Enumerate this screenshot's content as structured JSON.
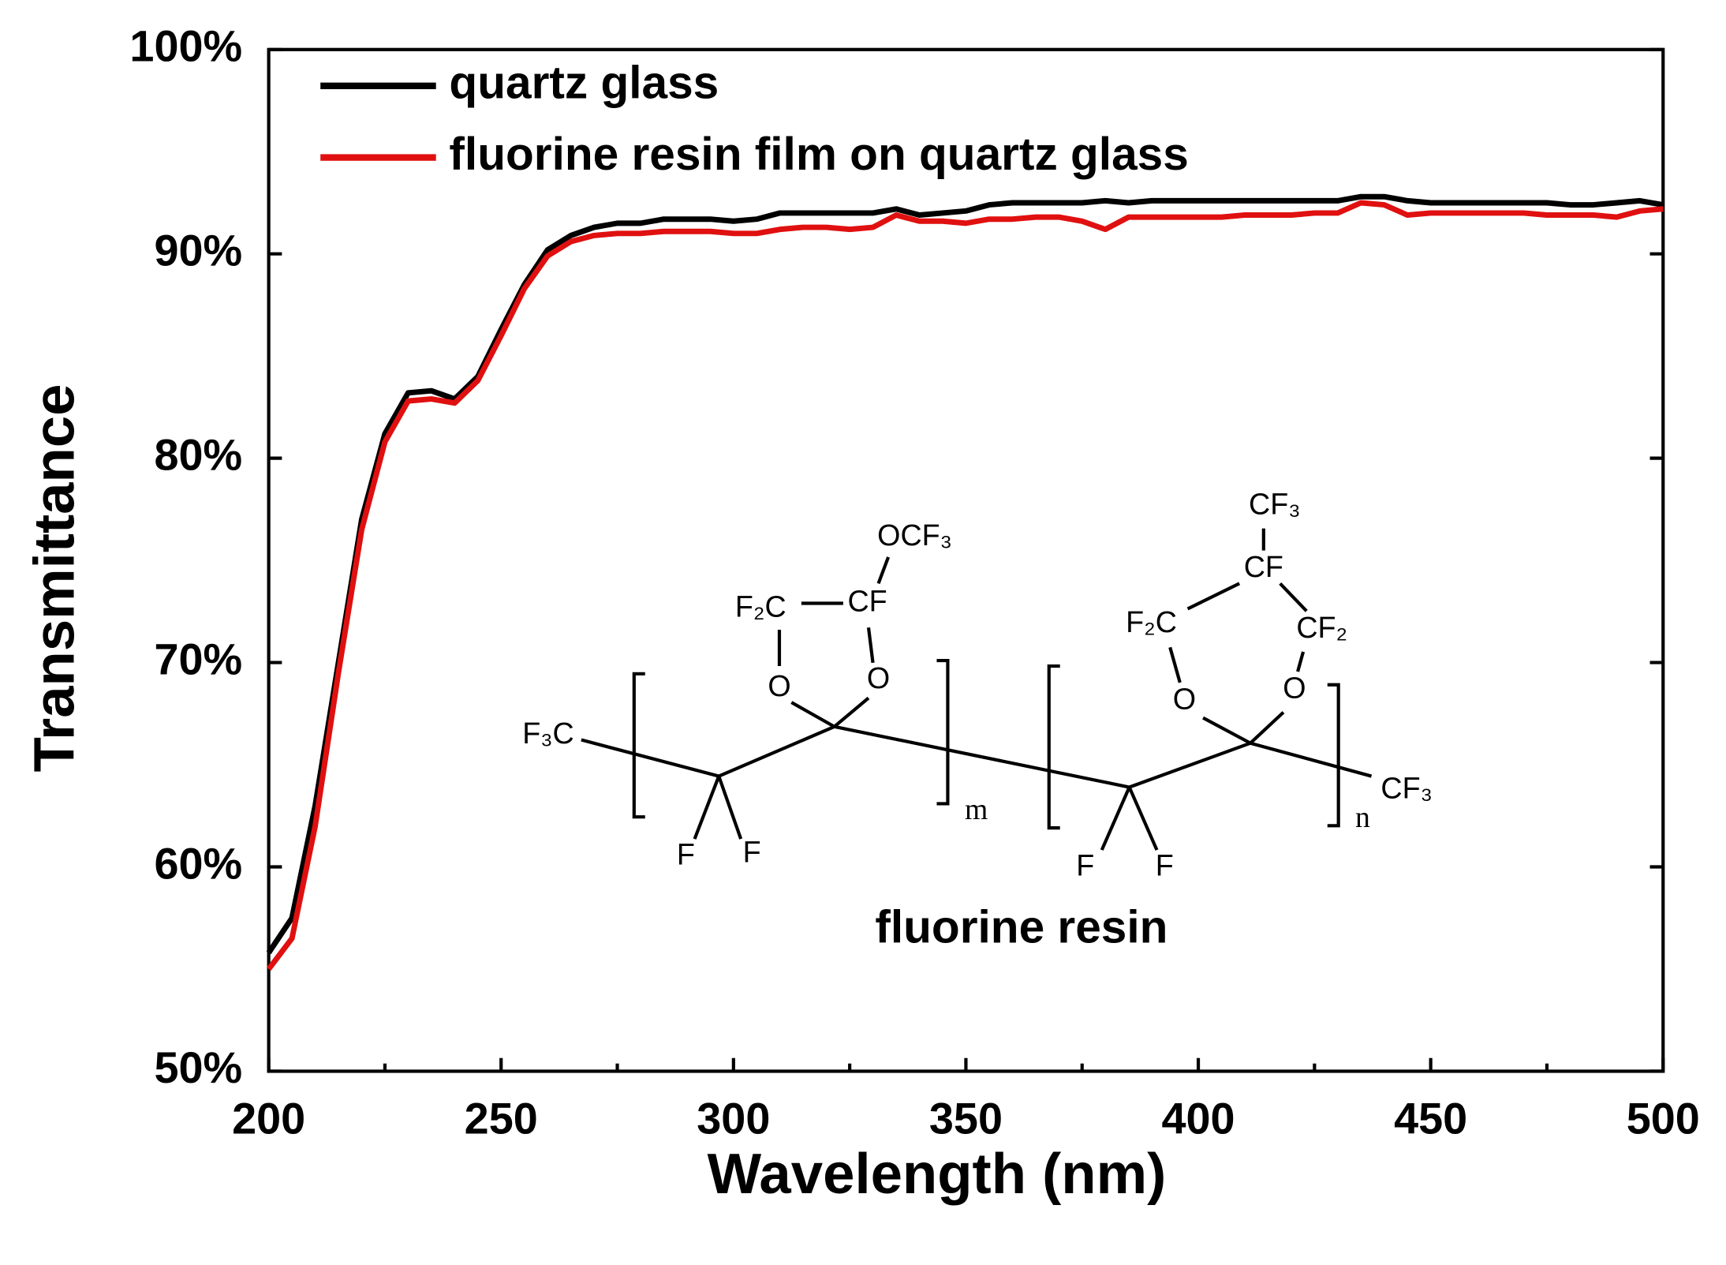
{
  "chart_data": {
    "type": "line",
    "xlabel": "Wavelength (nm)",
    "ylabel": "Transmittance",
    "x": [
      200,
      205,
      210,
      215,
      220,
      225,
      230,
      235,
      240,
      245,
      250,
      255,
      260,
      265,
      270,
      275,
      280,
      285,
      290,
      295,
      300,
      305,
      310,
      315,
      320,
      325,
      330,
      335,
      340,
      345,
      350,
      355,
      360,
      365,
      370,
      375,
      380,
      385,
      390,
      395,
      400,
      405,
      410,
      415,
      420,
      425,
      430,
      435,
      440,
      445,
      450,
      455,
      460,
      465,
      470,
      475,
      480,
      485,
      490,
      495,
      500
    ],
    "series": [
      {
        "name": "quartz glass",
        "color": "#000000",
        "values": [
          55.8,
          57.5,
          63,
          70,
          77,
          81.2,
          83.2,
          83.3,
          82.9,
          84,
          86.3,
          88.5,
          90.2,
          90.9,
          91.3,
          91.5,
          91.5,
          91.7,
          91.7,
          91.7,
          91.6,
          91.7,
          92.0,
          92.0,
          92.0,
          92.0,
          92.0,
          92.2,
          91.9,
          92.0,
          92.1,
          92.4,
          92.5,
          92.5,
          92.5,
          92.5,
          92.6,
          92.5,
          92.6,
          92.6,
          92.6,
          92.6,
          92.6,
          92.6,
          92.6,
          92.6,
          92.6,
          92.8,
          92.8,
          92.6,
          92.5,
          92.5,
          92.5,
          92.5,
          92.5,
          92.5,
          92.4,
          92.4,
          92.5,
          92.6,
          92.4
        ]
      },
      {
        "name": "fluorine resin film on quartz glass",
        "color": "#e01010",
        "values": [
          55.0,
          56.5,
          62,
          69.5,
          76.5,
          80.8,
          82.8,
          82.9,
          82.7,
          83.8,
          86,
          88.3,
          89.9,
          90.6,
          90.9,
          91.0,
          91.0,
          91.1,
          91.1,
          91.1,
          91.0,
          91.0,
          91.2,
          91.3,
          91.3,
          91.2,
          91.3,
          91.9,
          91.6,
          91.6,
          91.5,
          91.7,
          91.7,
          91.8,
          91.8,
          91.6,
          91.2,
          91.8,
          91.8,
          91.8,
          91.8,
          91.8,
          91.9,
          91.9,
          91.9,
          92.0,
          92.0,
          92.5,
          92.4,
          91.9,
          92.0,
          92.0,
          92.0,
          92.0,
          92.0,
          91.9,
          91.9,
          91.9,
          91.8,
          92.1,
          92.2
        ]
      }
    ],
    "xlim": [
      200,
      500
    ],
    "xticks": [
      200,
      250,
      300,
      350,
      400,
      450,
      500
    ],
    "xminorticks": [
      225,
      275,
      325,
      375,
      425,
      475
    ],
    "ylim": [
      50,
      100
    ],
    "yticks": [
      {
        "value": 50,
        "label": "50%"
      },
      {
        "value": 60,
        "label": "60%"
      },
      {
        "value": 70,
        "label": "70%"
      },
      {
        "value": 80,
        "label": "80%"
      },
      {
        "value": 90,
        "label": "90%"
      },
      {
        "value": 100,
        "label": "100%"
      }
    ],
    "legend": "upper left",
    "grid": false,
    "annotations": [
      "OCF₃",
      "F₂C",
      "CF",
      "O",
      "O",
      "CF₃",
      "CF",
      "F₂C",
      "CF₂",
      "O",
      "O",
      "F₃C",
      "F",
      "F",
      "m",
      "F",
      "F",
      "n",
      "CF₃"
    ],
    "inset_label": "fluorine resin"
  }
}
